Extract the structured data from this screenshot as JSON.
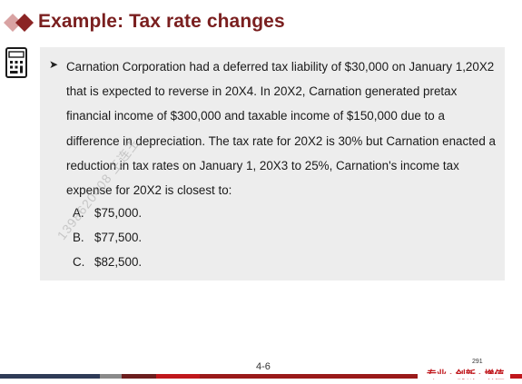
{
  "header": {
    "title": "Example: Tax rate changes"
  },
  "question": {
    "text": "Carnation Corporation had a deferred tax liability of $30,000 on January 1,20X2 that is expected to reverse in 20X4. In 20X2, Carnation generated pretax financial income of $300,000 and taxable income of $150,000 due to a difference in depreciation. The tax rate for 20X2 is 30% but Carnation enacted a reduction in tax rates on January 1, 20X3 to 25%, Carnation's income tax expense for 20X2 is closest to:",
    "options": [
      {
        "letter": "A.",
        "value": "$75,000."
      },
      {
        "letter": "B.",
        "value": "$77,500."
      },
      {
        "letter": "C.",
        "value": "$82,500."
      }
    ]
  },
  "watermark": "1398620408 王连玉",
  "footer": {
    "slide_number": "4-6",
    "small_number": "291",
    "slogan": "专业 · 创新 · 增值"
  },
  "colors": {
    "title": "#7a1f1f",
    "panel": "#ededed",
    "accent_red": "#c0171c",
    "dark_blue": "#2f3b57",
    "dark_red": "#6b1e1e"
  },
  "icons": {
    "title_marker": "double-diamond-icon",
    "calculator": "calculator-icon",
    "bullet": "arrow-bullet-icon"
  }
}
